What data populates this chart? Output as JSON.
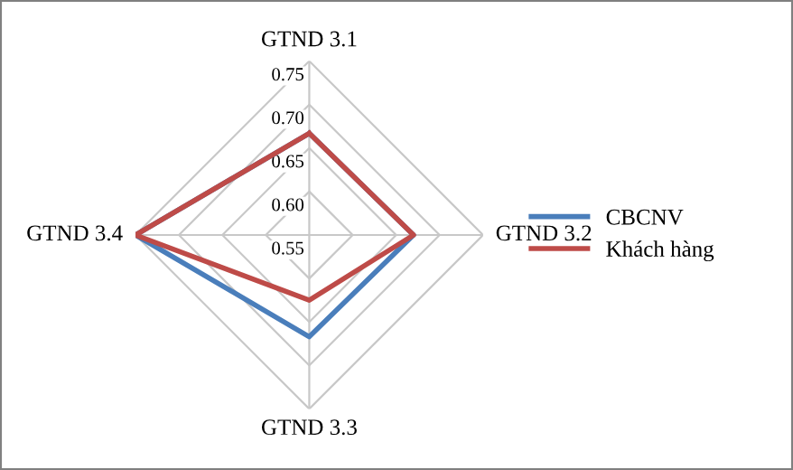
{
  "chart_data": {
    "type": "radar",
    "categories": [
      "GTND 3.1",
      "GTND 3.2",
      "GTND 3.3",
      "GTND 3.4"
    ],
    "ylim": [
      0.55,
      0.75
    ],
    "yticks": [
      {
        "value": 0.55,
        "label": "0.55"
      },
      {
        "value": 0.6,
        "label": "0.60"
      },
      {
        "value": 0.65,
        "label": "0.65"
      },
      {
        "value": 0.7,
        "label": "0.70"
      },
      {
        "value": 0.75,
        "label": "0.75"
      }
    ],
    "grid": true,
    "legend": "right",
    "series": [
      {
        "name": "CBCNV",
        "color": "#4a7ebb",
        "values": [
          0.667,
          0.67,
          0.667,
          0.75
        ]
      },
      {
        "name": "Khách hàng",
        "color": "#be4b48",
        "values": [
          0.667,
          0.67,
          0.625,
          0.75
        ]
      }
    ]
  }
}
